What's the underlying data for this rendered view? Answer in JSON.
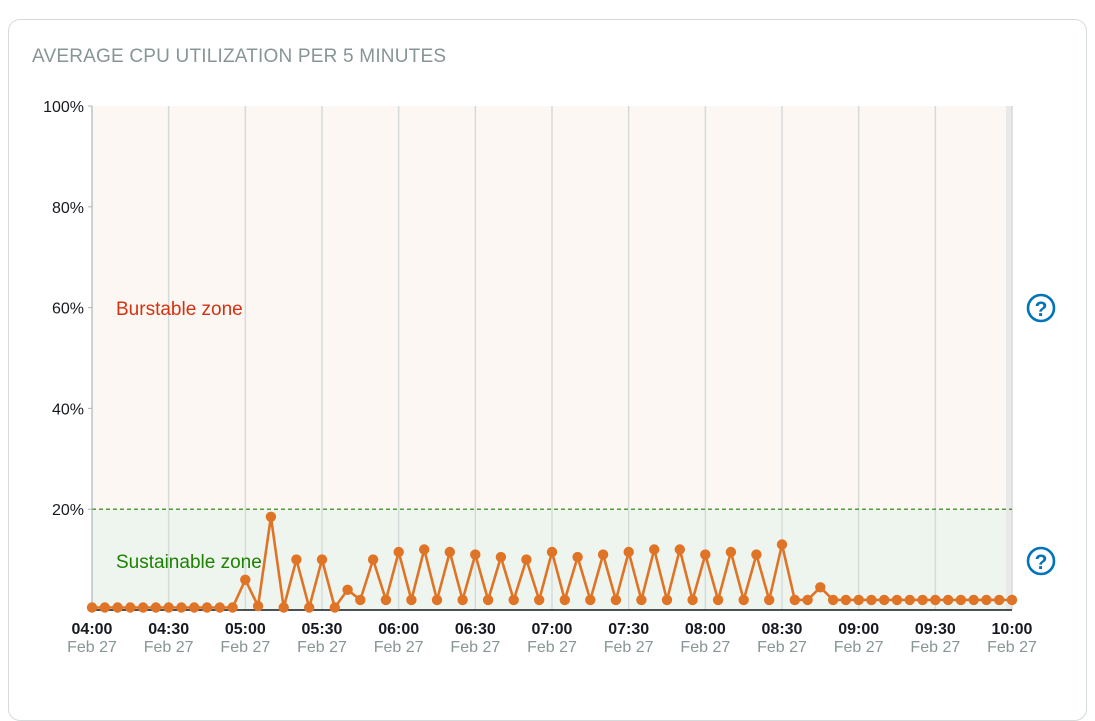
{
  "panel": {
    "title": "AVERAGE CPU UTILIZATION PER 5 MINUTES",
    "zones": {
      "burstable": "Burstable zone",
      "sustainable": "Sustainable zone"
    },
    "help_symbol": "?"
  },
  "colors": {
    "series": "#e07426",
    "burstable_bg": "#fcf7f3",
    "sustainable_bg": "#eef4ee",
    "threshold": "#1d8102",
    "grid": "#d5dbdb",
    "help": "#0073bb"
  },
  "chart_data": {
    "type": "line",
    "title": "AVERAGE CPU UTILIZATION PER 5 MINUTES",
    "xlabel": "",
    "ylabel": "",
    "ylim": [
      0,
      100
    ],
    "xlim": [
      "04:00",
      "10:00"
    ],
    "yticks": [
      "100%",
      "80%",
      "60%",
      "40%",
      "20%"
    ],
    "xticks": [
      {
        "time": "04:00",
        "date": "Feb 27"
      },
      {
        "time": "04:30",
        "date": "Feb 27"
      },
      {
        "time": "05:00",
        "date": "Feb 27"
      },
      {
        "time": "05:30",
        "date": "Feb 27"
      },
      {
        "time": "06:00",
        "date": "Feb 27"
      },
      {
        "time": "06:30",
        "date": "Feb 27"
      },
      {
        "time": "07:00",
        "date": "Feb 27"
      },
      {
        "time": "07:30",
        "date": "Feb 27"
      },
      {
        "time": "08:00",
        "date": "Feb 27"
      },
      {
        "time": "08:30",
        "date": "Feb 27"
      },
      {
        "time": "09:00",
        "date": "Feb 27"
      },
      {
        "time": "09:30",
        "date": "Feb 27"
      },
      {
        "time": "10:00",
        "date": "Feb 27"
      }
    ],
    "threshold": 20,
    "grid": true,
    "series": [
      {
        "x": [
          "04:00",
          "04:05",
          "04:10",
          "04:15",
          "04:20",
          "04:25",
          "04:30",
          "04:35",
          "04:40",
          "04:45",
          "04:50",
          "04:55",
          "05:00",
          "05:05",
          "05:10",
          "05:15",
          "05:20",
          "05:25",
          "05:30",
          "05:35",
          "05:40",
          "05:45",
          "05:50",
          "05:55",
          "06:00",
          "06:05",
          "06:10",
          "06:15",
          "06:20",
          "06:25",
          "06:30",
          "06:35",
          "06:40",
          "06:45",
          "06:50",
          "06:55",
          "07:00",
          "07:05",
          "07:10",
          "07:15",
          "07:20",
          "07:25",
          "07:30",
          "07:35",
          "07:40",
          "07:45",
          "07:50",
          "07:55",
          "08:00",
          "08:05",
          "08:10",
          "08:15",
          "08:20",
          "08:25",
          "08:30",
          "08:35",
          "08:40",
          "08:45",
          "08:50",
          "08:55",
          "09:00",
          "09:05",
          "09:10",
          "09:15",
          "09:20",
          "09:25",
          "09:30",
          "09:35",
          "09:40",
          "09:45",
          "09:50",
          "09:55",
          "10:00"
        ],
        "values": [
          0.5,
          0.5,
          0.5,
          0.5,
          0.5,
          0.5,
          0.5,
          0.5,
          0.5,
          0.5,
          0.5,
          0.5,
          6,
          0.8,
          18.5,
          0.5,
          10,
          0.5,
          10,
          0.5,
          4,
          2,
          10,
          2,
          11.5,
          2,
          12,
          2,
          11.5,
          2,
          11,
          2,
          10.5,
          2,
          10,
          2,
          11.5,
          2,
          10.5,
          2,
          11,
          2,
          11.5,
          2,
          12,
          2,
          12,
          2,
          11,
          2,
          11.5,
          2,
          11,
          2,
          13,
          2,
          2,
          4.5,
          2,
          2,
          2,
          2,
          2,
          2,
          2,
          2,
          2,
          2,
          2,
          2,
          2,
          2,
          2
        ]
      }
    ]
  }
}
